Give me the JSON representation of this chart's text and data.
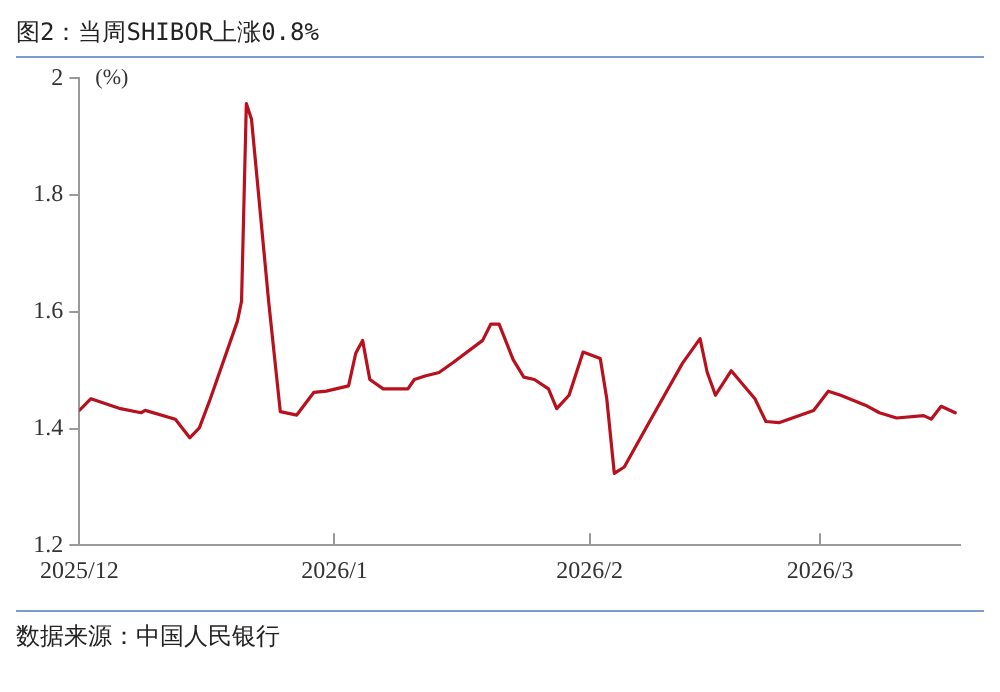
{
  "chart_data": {
    "type": "line",
    "title": "图2：当周SHIBOR上涨0.8%",
    "ylabel": "(%)",
    "annotations": [
      "数据来源：中国人民银行"
    ],
    "x": [
      "2025-12-01",
      "2025-12-02T10:00",
      "2025-12-06",
      "2025-12-08T12:00",
      "2025-12-09",
      "2025-12-12T16:00",
      "2025-12-14T10:00",
      "2025-12-15T14:00",
      "2025-12-16T22:00",
      "2025-12-20T05:00",
      "2025-12-20T17:00",
      "2025-12-21T07:00",
      "2025-12-21T22:00",
      "2025-12-24",
      "2025-12-25T10:00",
      "2025-12-27T10:00",
      "2025-12-29T12:00",
      "2025-12-31",
      "2026-01-02T17:00",
      "2026-01-03T14:00",
      "2026-01-04T10:00",
      "2026-01-05T07:00",
      "2026-01-06T22:00",
      "2026-01-09T22:00",
      "2026-01-10T17:00",
      "2026-01-12",
      "2026-01-13T17:00",
      "2026-01-15T10:00",
      "2026-01-19",
      "2026-01-20",
      "2026-01-21",
      "2026-01-22T17:00",
      "2026-01-24",
      "2026-01-25T07:00",
      "2026-01-27",
      "2026-01-28",
      "2026-01-29T12:00",
      "2026-01-31T05:00",
      "2026-02-02T07:00",
      "2026-02-03T02:00",
      "2026-02-04",
      "2026-02-05T05:00",
      "2026-02-08T02:00",
      "2026-02-12T07:00",
      "2026-02-14T10:00",
      "2026-02-15T07:00",
      "2026-02-16T07:00",
      "2026-02-18T05:00",
      "2026-02-21T02:00",
      "2026-02-22T10:00",
      "2026-02-24",
      "2026-02-28T05:00",
      "2026-03-02",
      "2026-03-03T12:00",
      "2026-03-06T12:00",
      "2026-03-08T05:00",
      "2026-03-10T07:00",
      "2026-03-13T14:00",
      "2026-03-14T12:00",
      "2026-03-15T17:00",
      "2026-03-17T10:00"
    ],
    "series": [
      {
        "color": "#b8101c",
        "values": [
          1.431,
          1.451,
          1.434,
          1.427,
          1.431,
          1.416,
          1.384,
          1.401,
          1.451,
          1.584,
          1.618,
          1.957,
          1.93,
          1.618,
          1.429,
          1.423,
          1.462,
          1.464,
          1.473,
          1.529,
          1.551,
          1.484,
          1.468,
          1.468,
          1.484,
          1.49,
          1.496,
          1.513,
          1.551,
          1.579,
          1.579,
          1.518,
          1.488,
          1.484,
          1.468,
          1.434,
          1.457,
          1.531,
          1.52,
          1.451,
          1.323,
          1.334,
          1.407,
          1.512,
          1.554,
          1.496,
          1.457,
          1.499,
          1.451,
          1.412,
          1.41,
          1.431,
          1.464,
          1.457,
          1.44,
          1.427,
          1.418,
          1.422,
          1.416,
          1.438,
          1.427
        ]
      }
    ],
    "xlim": [
      "2025-12-01",
      "2026-03-18"
    ],
    "xticks": [
      {
        "value": "2025-12-01",
        "label": "2025/12"
      },
      {
        "value": "2026-01-01",
        "label": "2026/1"
      },
      {
        "value": "2026-02-01",
        "label": "2026/2"
      },
      {
        "value": "2026-03-01",
        "label": "2026/3"
      }
    ],
    "ylim": [
      1.2,
      2
    ],
    "yticks": [
      1.2,
      1.4,
      1.6,
      1.8,
      2
    ],
    "grid": false,
    "legend": false,
    "marker": "none",
    "line_style": "solid"
  }
}
